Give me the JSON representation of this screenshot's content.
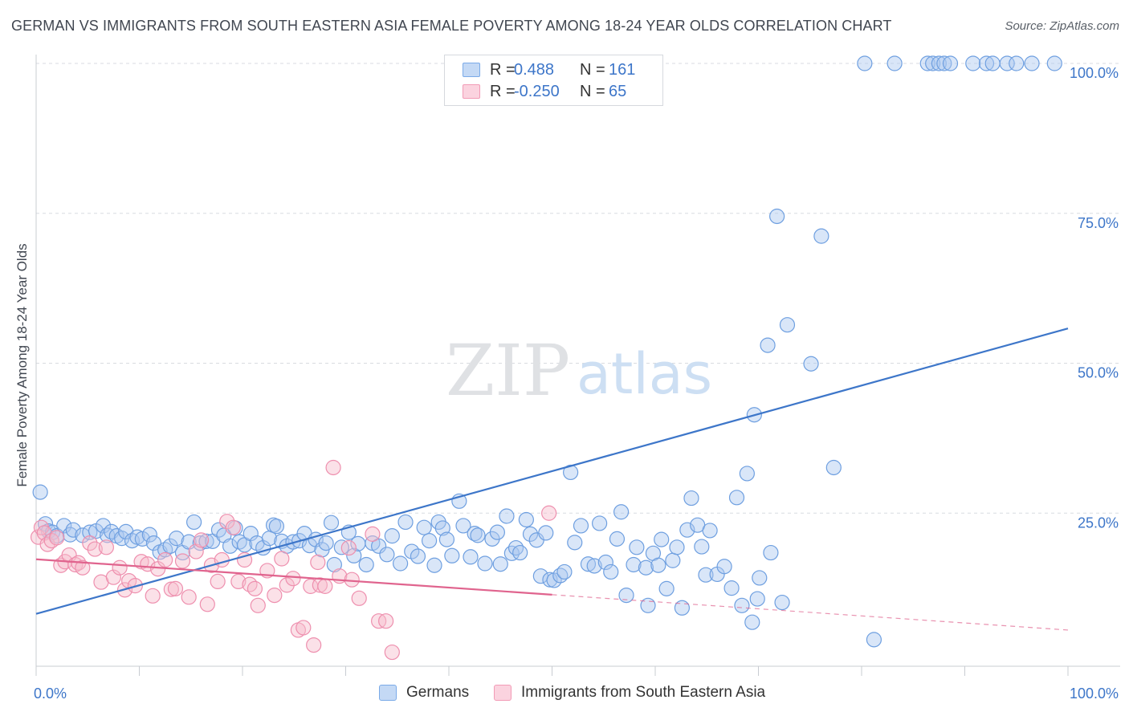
{
  "title": "GERMAN VS IMMIGRANTS FROM SOUTH EASTERN ASIA FEMALE POVERTY AMONG 18-24 YEAR OLDS CORRELATION CHART",
  "source": "Source: ZipAtlas.com",
  "watermark": {
    "zip": "ZIP",
    "atlas": "atlas"
  },
  "legend": {
    "rows": [
      {
        "r_label": "R =",
        "r_value": "0.488",
        "n_label": "N =",
        "n_value": "161",
        "color": "#7aaae8"
      },
      {
        "r_label": "R =",
        "r_value": "-0.250",
        "n_label": "N =",
        "n_value": "65",
        "color": "#f29bb6"
      }
    ]
  },
  "bottom_legend": {
    "germans": "Germans",
    "immigrants": "Immigrants from South Eastern Asia"
  },
  "colors": {
    "blue": "#3d76c9",
    "blue_fill": "#aac8f0",
    "pink": "#e0648e",
    "pink_fill": "#f6bccd",
    "grid": "#d8dbe0",
    "axis_label": "#3d76c9"
  },
  "chart_data": {
    "type": "scatter",
    "title": "GERMAN VS IMMIGRANTS FROM SOUTH EASTERN ASIA FEMALE POVERTY AMONG 18-24 YEAR OLDS CORRELATION CHART",
    "xlabel": "",
    "ylabel": "Female Poverty Among 18-24 Year Olds",
    "xlim": [
      0,
      100
    ],
    "ylim": [
      0,
      105
    ],
    "x_tick_labels": [
      "0.0%",
      "100.0%"
    ],
    "y_ticks": [
      25,
      50,
      75,
      100
    ],
    "y_tick_labels": [
      "25.0%",
      "50.0%",
      "75.0%",
      "100.0%"
    ],
    "grid": true,
    "series": [
      {
        "name": "Germans",
        "points": [
          [
            0.4,
            28.5
          ],
          [
            0.9,
            23.2
          ],
          [
            1.2,
            22.0
          ],
          [
            1.6,
            21.8
          ],
          [
            2.0,
            21.2
          ],
          [
            2.7,
            22.9
          ],
          [
            3.3,
            21.4
          ],
          [
            3.6,
            22.2
          ],
          [
            4.5,
            21.3
          ],
          [
            5.2,
            21.8
          ],
          [
            5.8,
            22.0
          ],
          [
            6.5,
            22.9
          ],
          [
            6.9,
            21.3
          ],
          [
            7.3,
            21.9
          ],
          [
            7.8,
            21.2
          ],
          [
            8.3,
            20.8
          ],
          [
            8.7,
            21.9
          ],
          [
            9.3,
            20.4
          ],
          [
            9.8,
            21.0
          ],
          [
            10.3,
            20.7
          ],
          [
            11.0,
            21.4
          ],
          [
            11.4,
            20.0
          ],
          [
            12.0,
            18.5
          ],
          [
            12.5,
            18.9
          ],
          [
            13.0,
            19.5
          ],
          [
            13.6,
            20.8
          ],
          [
            14.2,
            18.4
          ],
          [
            14.8,
            20.2
          ],
          [
            15.3,
            23.5
          ],
          [
            15.9,
            20.0
          ],
          [
            16.5,
            20.3
          ],
          [
            17.1,
            20.3
          ],
          [
            17.7,
            22.2
          ],
          [
            18.2,
            21.3
          ],
          [
            18.8,
            19.5
          ],
          [
            19.3,
            22.5
          ],
          [
            19.7,
            20.2
          ],
          [
            20.2,
            19.7
          ],
          [
            20.8,
            21.6
          ],
          [
            21.4,
            20.0
          ],
          [
            22.0,
            19.2
          ],
          [
            22.6,
            20.8
          ],
          [
            23.0,
            23.0
          ],
          [
            23.3,
            22.8
          ],
          [
            23.8,
            20.3
          ],
          [
            24.3,
            19.5
          ],
          [
            24.9,
            20.2
          ],
          [
            25.5,
            20.4
          ],
          [
            26.0,
            21.6
          ],
          [
            26.5,
            19.6
          ],
          [
            27.1,
            20.6
          ],
          [
            27.7,
            18.9
          ],
          [
            28.1,
            20.0
          ],
          [
            28.6,
            23.4
          ],
          [
            28.9,
            16.4
          ],
          [
            29.6,
            19.3
          ],
          [
            30.3,
            21.8
          ],
          [
            30.8,
            17.9
          ],
          [
            31.2,
            19.9
          ],
          [
            32.0,
            16.4
          ],
          [
            32.6,
            20.0
          ],
          [
            33.2,
            19.5
          ],
          [
            34.0,
            18.1
          ],
          [
            34.5,
            21.2
          ],
          [
            35.3,
            16.6
          ],
          [
            35.8,
            23.5
          ],
          [
            36.4,
            18.6
          ],
          [
            37.0,
            17.8
          ],
          [
            37.6,
            22.6
          ],
          [
            38.1,
            20.4
          ],
          [
            38.6,
            16.3
          ],
          [
            39.0,
            23.5
          ],
          [
            39.4,
            22.5
          ],
          [
            39.8,
            20.6
          ],
          [
            40.3,
            17.9
          ],
          [
            41.0,
            27.0
          ],
          [
            41.4,
            22.9
          ],
          [
            42.1,
            17.7
          ],
          [
            42.5,
            21.6
          ],
          [
            42.8,
            21.3
          ],
          [
            43.5,
            16.6
          ],
          [
            44.2,
            20.7
          ],
          [
            44.7,
            21.8
          ],
          [
            45.0,
            16.5
          ],
          [
            45.6,
            24.5
          ],
          [
            46.1,
            18.3
          ],
          [
            46.5,
            19.2
          ],
          [
            46.9,
            18.4
          ],
          [
            47.5,
            23.9
          ],
          [
            47.9,
            21.5
          ],
          [
            48.5,
            20.5
          ],
          [
            48.9,
            14.5
          ],
          [
            49.4,
            21.7
          ],
          [
            49.8,
            13.9
          ],
          [
            50.2,
            13.8
          ],
          [
            50.8,
            14.6
          ],
          [
            51.2,
            15.2
          ],
          [
            51.8,
            31.8
          ],
          [
            52.2,
            20.1
          ],
          [
            52.8,
            22.9
          ],
          [
            53.5,
            16.5
          ],
          [
            54.1,
            16.2
          ],
          [
            54.6,
            23.3
          ],
          [
            55.2,
            16.8
          ],
          [
            55.7,
            15.2
          ],
          [
            56.3,
            20.7
          ],
          [
            56.7,
            25.2
          ],
          [
            57.2,
            11.3
          ],
          [
            57.9,
            16.4
          ],
          [
            58.2,
            19.3
          ],
          [
            59.1,
            15.9
          ],
          [
            59.3,
            9.6
          ],
          [
            59.8,
            18.3
          ],
          [
            60.3,
            16.3
          ],
          [
            60.6,
            20.6
          ],
          [
            61.1,
            12.4
          ],
          [
            61.7,
            17.1
          ],
          [
            62.1,
            19.3
          ],
          [
            62.6,
            9.2
          ],
          [
            63.1,
            22.2
          ],
          [
            63.5,
            27.5
          ],
          [
            64.1,
            23.0
          ],
          [
            64.5,
            19.4
          ],
          [
            64.9,
            14.7
          ],
          [
            65.3,
            22.1
          ],
          [
            66.0,
            14.8
          ],
          [
            66.7,
            16.1
          ],
          [
            67.4,
            12.5
          ],
          [
            67.9,
            27.6
          ],
          [
            68.4,
            9.6
          ],
          [
            68.9,
            31.6
          ],
          [
            69.4,
            6.8
          ],
          [
            69.6,
            41.4
          ],
          [
            69.9,
            10.7
          ],
          [
            70.1,
            14.2
          ],
          [
            70.9,
            53.0
          ],
          [
            71.2,
            18.4
          ],
          [
            71.8,
            74.5
          ],
          [
            72.3,
            10.1
          ],
          [
            72.8,
            56.4
          ],
          [
            75.1,
            49.9
          ],
          [
            76.1,
            71.2
          ],
          [
            77.3,
            32.6
          ],
          [
            80.3,
            100
          ],
          [
            81.2,
            3.9
          ],
          [
            83.2,
            100
          ],
          [
            86.4,
            100
          ],
          [
            86.9,
            100
          ],
          [
            87.5,
            100
          ],
          [
            88.0,
            100
          ],
          [
            88.6,
            100
          ],
          [
            90.8,
            100
          ],
          [
            92.1,
            100
          ],
          [
            92.7,
            100
          ],
          [
            94.1,
            100
          ],
          [
            95.0,
            100
          ],
          [
            96.5,
            100
          ],
          [
            98.7,
            100
          ]
        ]
      },
      {
        "name": "Immigrants from South Eastern Asia",
        "points": [
          [
            0.2,
            21.0
          ],
          [
            0.5,
            22.6
          ],
          [
            0.8,
            21.7
          ],
          [
            1.1,
            19.8
          ],
          [
            1.5,
            20.4
          ],
          [
            2.0,
            20.9
          ],
          [
            2.4,
            16.3
          ],
          [
            2.8,
            16.9
          ],
          [
            3.2,
            18.0
          ],
          [
            3.8,
            16.4
          ],
          [
            4.1,
            16.7
          ],
          [
            4.5,
            15.9
          ],
          [
            5.2,
            20.0
          ],
          [
            5.7,
            19.0
          ],
          [
            6.3,
            13.5
          ],
          [
            6.8,
            19.3
          ],
          [
            7.5,
            14.3
          ],
          [
            8.1,
            15.9
          ],
          [
            8.6,
            12.2
          ],
          [
            9.0,
            13.7
          ],
          [
            9.6,
            12.9
          ],
          [
            10.2,
            16.9
          ],
          [
            10.8,
            16.5
          ],
          [
            11.3,
            11.2
          ],
          [
            11.8,
            15.7
          ],
          [
            12.5,
            17.2
          ],
          [
            13.1,
            12.3
          ],
          [
            13.5,
            12.4
          ],
          [
            14.2,
            17.0
          ],
          [
            14.8,
            11.0
          ],
          [
            15.5,
            18.6
          ],
          [
            16.0,
            20.5
          ],
          [
            16.6,
            9.8
          ],
          [
            17.0,
            16.3
          ],
          [
            17.6,
            13.6
          ],
          [
            18.0,
            17.2
          ],
          [
            18.5,
            23.6
          ],
          [
            19.1,
            22.6
          ],
          [
            19.6,
            13.6
          ],
          [
            20.2,
            17.2
          ],
          [
            20.7,
            13.1
          ],
          [
            21.2,
            12.4
          ],
          [
            21.5,
            9.6
          ],
          [
            22.4,
            15.4
          ],
          [
            23.1,
            11.3
          ],
          [
            23.8,
            17.4
          ],
          [
            24.3,
            13.0
          ],
          [
            24.9,
            14.1
          ],
          [
            25.4,
            5.5
          ],
          [
            25.9,
            5.9
          ],
          [
            26.6,
            12.8
          ],
          [
            26.9,
            3.0
          ],
          [
            27.3,
            16.8
          ],
          [
            27.5,
            13.0
          ],
          [
            28.0,
            12.8
          ],
          [
            28.8,
            32.6
          ],
          [
            29.4,
            14.5
          ],
          [
            30.3,
            19.2
          ],
          [
            30.6,
            13.9
          ],
          [
            31.3,
            10.8
          ],
          [
            32.6,
            21.5
          ],
          [
            33.2,
            7.0
          ],
          [
            33.9,
            7.0
          ],
          [
            34.5,
            1.8
          ],
          [
            49.7,
            25.0
          ]
        ]
      }
    ],
    "trend_lines": [
      {
        "series": "Germans",
        "from": [
          0,
          8.2
        ],
        "to": [
          100,
          55.8
        ]
      },
      {
        "series": "Immigrants from South Eastern Asia",
        "from": [
          0,
          17.3
        ],
        "to": [
          50,
          11.4
        ],
        "dashed_to": [
          100,
          5.5
        ]
      }
    ]
  }
}
